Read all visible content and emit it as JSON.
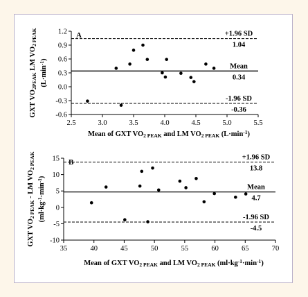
{
  "chart_data": [
    {
      "type": "scatter",
      "panel_label": "A",
      "xlabel_parts": [
        "Mean of GXT VO",
        "2 PEAK",
        " and LM VO",
        "2 PEAK",
        " (L·min",
        "-1",
        ")"
      ],
      "ylabel_parts": [
        "GXT VO",
        "2PEAK",
        " LM VO",
        "2 PEAK"
      ],
      "ylabel_units_parts": [
        "(L·min",
        "-1",
        ")"
      ],
      "xlim": [
        2.5,
        5.5
      ],
      "ylim": [
        -0.6,
        1.2
      ],
      "xticks": [
        2.5,
        3.0,
        3.5,
        4.0,
        4.5,
        5.0,
        5.5
      ],
      "xtick_labels": [
        "2.5",
        "3.0",
        "3.5",
        "4.0",
        "4.5",
        "5.0",
        "5.5"
      ],
      "yticks": [
        -0.6,
        -0.3,
        0.0,
        0.3,
        0.6,
        0.9,
        1.2
      ],
      "ytick_labels": [
        "-0.6",
        "-0.3",
        "0.0",
        "0.3",
        "0.6",
        "0.9",
        "1.2"
      ],
      "points": [
        {
          "x": 2.76,
          "y": -0.31
        },
        {
          "x": 3.22,
          "y": 0.4
        },
        {
          "x": 3.3,
          "y": -0.4
        },
        {
          "x": 3.44,
          "y": 0.49
        },
        {
          "x": 3.5,
          "y": 0.79
        },
        {
          "x": 3.65,
          "y": 0.9
        },
        {
          "x": 3.72,
          "y": 0.59
        },
        {
          "x": 3.96,
          "y": 0.3
        },
        {
          "x": 4.01,
          "y": 0.21
        },
        {
          "x": 4.03,
          "y": 0.59
        },
        {
          "x": 4.26,
          "y": 0.29
        },
        {
          "x": 4.42,
          "y": 0.2
        },
        {
          "x": 4.47,
          "y": 0.11
        },
        {
          "x": 4.66,
          "y": 0.49
        },
        {
          "x": 4.79,
          "y": 0.4
        }
      ],
      "lines": [
        {
          "name": "+1.96 SD",
          "value_label": "1.04",
          "y": 1.04,
          "style": "dashed"
        },
        {
          "name": "Mean",
          "value_label": "0.34",
          "y": 0.34,
          "style": "solid"
        },
        {
          "name": "-1.96 SD",
          "value_label": "-0.36",
          "y": -0.36,
          "style": "dashed"
        }
      ]
    },
    {
      "type": "scatter",
      "panel_label": "B",
      "xlabel_parts": [
        "Mean of GXT VO",
        "2 PEAK",
        " and LM VO",
        "2 PEAK",
        " (ml·kg",
        "-1",
        "·min",
        "-1",
        ")"
      ],
      "ylabel_parts": [
        "GXT VO",
        "2 PEAK",
        " - LM VO",
        "2 PEAK"
      ],
      "ylabel_units_parts": [
        "(ml·kg",
        "-1",
        "·min",
        "-1",
        ")"
      ],
      "xlim": [
        35,
        70
      ],
      "ylim": [
        -10,
        15
      ],
      "xticks": [
        35,
        40,
        45,
        50,
        55,
        60,
        65,
        70
      ],
      "xtick_labels": [
        "35",
        "40",
        "45",
        "50",
        "55",
        "60",
        "65",
        "70"
      ],
      "yticks": [
        -10,
        -5,
        0,
        5,
        10,
        15
      ],
      "ytick_labels": [
        "-10",
        "-5",
        "0",
        "5",
        "10",
        "15"
      ],
      "points": [
        {
          "x": 39.6,
          "y": 1.4
        },
        {
          "x": 42.0,
          "y": 6.2
        },
        {
          "x": 45.1,
          "y": -3.8
        },
        {
          "x": 47.6,
          "y": 6.5
        },
        {
          "x": 47.9,
          "y": 11.0
        },
        {
          "x": 48.9,
          "y": -4.4
        },
        {
          "x": 49.7,
          "y": 12.0
        },
        {
          "x": 50.7,
          "y": 5.3
        },
        {
          "x": 54.2,
          "y": 8.0
        },
        {
          "x": 55.2,
          "y": 6.0
        },
        {
          "x": 56.9,
          "y": 8.8
        },
        {
          "x": 58.2,
          "y": 1.7
        },
        {
          "x": 59.9,
          "y": 4.2
        },
        {
          "x": 63.4,
          "y": 3.1
        },
        {
          "x": 65.1,
          "y": 4.1
        }
      ],
      "lines": [
        {
          "name": "+1.96 SD",
          "value_label": "13.8",
          "y": 13.8,
          "style": "dashed"
        },
        {
          "name": "Mean",
          "value_label": "4.7",
          "y": 4.7,
          "style": "solid"
        },
        {
          "name": "-1.96 SD",
          "value_label": "-4.5",
          "y": -4.5,
          "style": "dashed"
        }
      ]
    }
  ]
}
